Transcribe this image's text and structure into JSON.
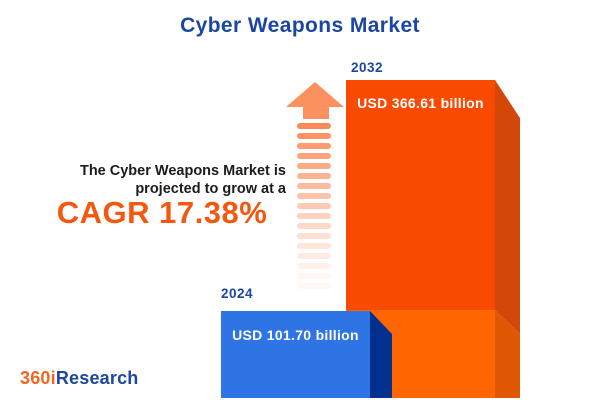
{
  "title": "Cyber Weapons Market",
  "annotation": {
    "line1": "The Cyber Weapons Market is",
    "line2": "projected to grow at a",
    "cagr": "CAGR 17.38%"
  },
  "bars": {
    "y2024": {
      "year": "2024",
      "value_label": "USD 101.70 billion"
    },
    "y2032": {
      "year": "2032",
      "value_label": "USD 366.61 billion"
    }
  },
  "logo": {
    "part1": "360i",
    "part2": "Research"
  },
  "colors": {
    "title_blue": "#1c46a4",
    "cagr_orange": "#f4570e",
    "bar2024_face": "#2e74e5",
    "bar2024_side": "#03318d",
    "bar2032_top_face": "#f94a02",
    "bar2032_top_side": "#d3470a",
    "bar2032_bottom_face": "#ff6602",
    "bar2032_bottom_side": "#e05804",
    "arrow_head": "#fc9160",
    "stripe": "#fb8a57"
  },
  "arrow": {
    "stripe_count": 17,
    "stripe_color": "#fb8a57"
  },
  "chart_data": {
    "type": "bar",
    "title": "Cyber Weapons Market",
    "categories": [
      "2024",
      "2032"
    ],
    "values": [
      101.7,
      366.61
    ],
    "unit": "USD billion",
    "value_labels": [
      "USD 101.70 billion",
      "USD 366.61 billion"
    ],
    "cagr_percent": 17.38,
    "annotation": "The Cyber Weapons Market is projected to grow at a CAGR 17.38%",
    "legend_position": "none",
    "grid": false,
    "style": "3d-bars, 2032 bar segmented at 2024 level, faded growth arrow"
  }
}
